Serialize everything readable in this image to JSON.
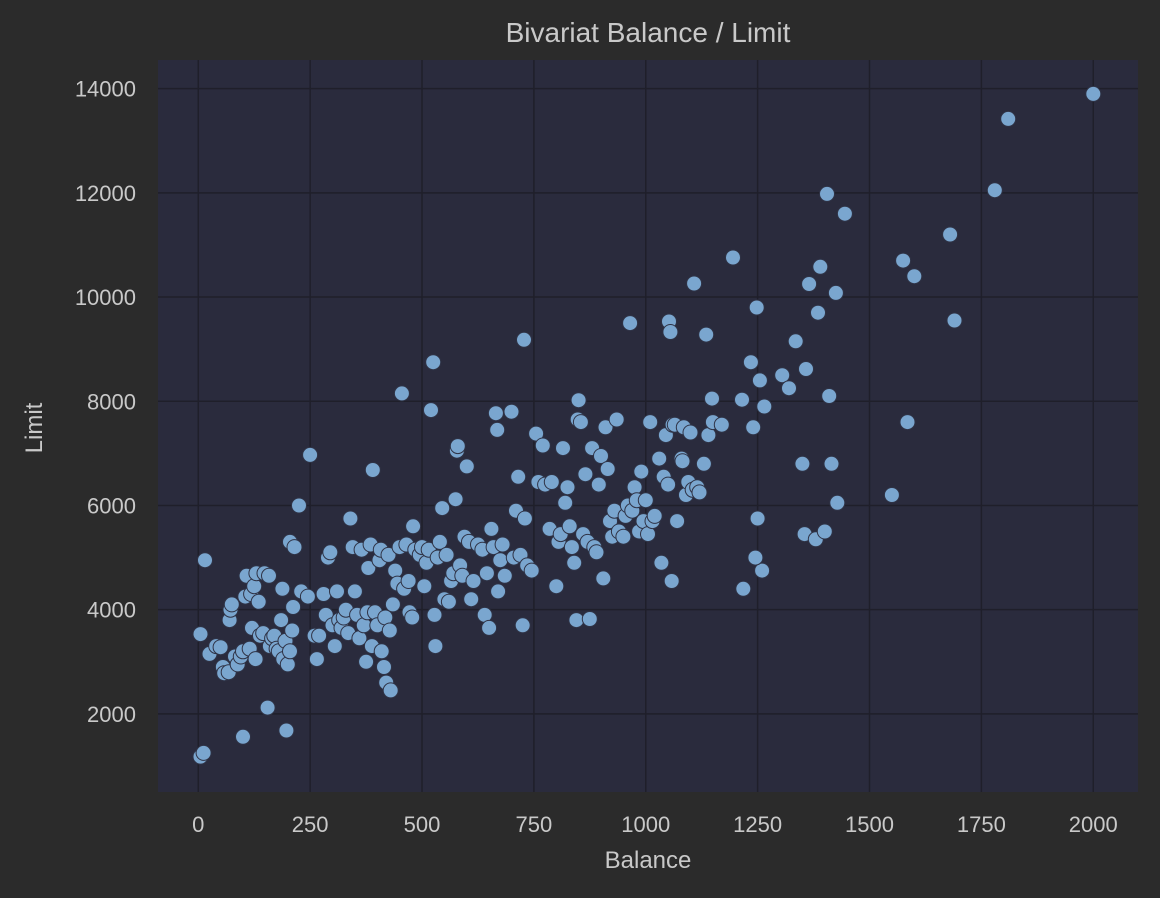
{
  "colors": {
    "background": "#2b2b2b",
    "plot_background": "#2a2b3d",
    "grid": "#1f1f2a",
    "text": "#c9c9c9",
    "point_fill": "#7aa6cf",
    "point_edge": "#2f3346"
  },
  "chart_data": {
    "type": "scatter",
    "title": "Bivariat Balance / Limit",
    "xlabel": "Balance",
    "ylabel": "Limit",
    "xlim": [
      -90,
      2100
    ],
    "ylim": [
      500,
      14550
    ],
    "xticks": [
      0,
      250,
      500,
      750,
      1000,
      1250,
      1500,
      1750,
      2000
    ],
    "yticks": [
      2000,
      4000,
      6000,
      8000,
      10000,
      12000,
      14000
    ],
    "grid": true,
    "legend": "none",
    "points": [
      [
        5,
        1180
      ],
      [
        12,
        1250
      ],
      [
        5,
        3530
      ],
      [
        15,
        4950
      ],
      [
        25,
        3150
      ],
      [
        40,
        3300
      ],
      [
        50,
        3280
      ],
      [
        55,
        2900
      ],
      [
        58,
        2780
      ],
      [
        68,
        2800
      ],
      [
        70,
        3800
      ],
      [
        72,
        4000
      ],
      [
        75,
        4100
      ],
      [
        82,
        3100
      ],
      [
        88,
        2950
      ],
      [
        95,
        3100
      ],
      [
        100,
        3200
      ],
      [
        100,
        1560
      ],
      [
        105,
        4250
      ],
      [
        108,
        4650
      ],
      [
        115,
        3250
      ],
      [
        118,
        4300
      ],
      [
        120,
        3650
      ],
      [
        125,
        4450
      ],
      [
        128,
        3050
      ],
      [
        130,
        4700
      ],
      [
        135,
        4150
      ],
      [
        138,
        3500
      ],
      [
        145,
        3550
      ],
      [
        148,
        4700
      ],
      [
        155,
        2120
      ],
      [
        158,
        4650
      ],
      [
        160,
        3300
      ],
      [
        165,
        3450
      ],
      [
        170,
        3500
      ],
      [
        175,
        3250
      ],
      [
        180,
        3200
      ],
      [
        185,
        3800
      ],
      [
        188,
        4400
      ],
      [
        190,
        3050
      ],
      [
        195,
        3400
      ],
      [
        197,
        1680
      ],
      [
        200,
        2950
      ],
      [
        205,
        3200
      ],
      [
        210,
        3600
      ],
      [
        212,
        4050
      ],
      [
        205,
        5300
      ],
      [
        215,
        5200
      ],
      [
        225,
        6000
      ],
      [
        230,
        4350
      ],
      [
        245,
        4250
      ],
      [
        250,
        6970
      ],
      [
        260,
        3500
      ],
      [
        265,
        3050
      ],
      [
        270,
        3500
      ],
      [
        280,
        4300
      ],
      [
        285,
        3900
      ],
      [
        290,
        5000
      ],
      [
        295,
        5100
      ],
      [
        300,
        3700
      ],
      [
        305,
        3300
      ],
      [
        310,
        4350
      ],
      [
        315,
        3800
      ],
      [
        320,
        3650
      ],
      [
        325,
        3850
      ],
      [
        330,
        4000
      ],
      [
        335,
        3550
      ],
      [
        340,
        5750
      ],
      [
        345,
        5200
      ],
      [
        350,
        4350
      ],
      [
        355,
        3900
      ],
      [
        360,
        3450
      ],
      [
        365,
        5150
      ],
      [
        370,
        3700
      ],
      [
        375,
        3000
      ],
      [
        378,
        3950
      ],
      [
        380,
        4800
      ],
      [
        385,
        5250
      ],
      [
        388,
        3300
      ],
      [
        390,
        6680
      ],
      [
        395,
        3950
      ],
      [
        400,
        3700
      ],
      [
        405,
        4950
      ],
      [
        408,
        5150
      ],
      [
        410,
        3200
      ],
      [
        415,
        2900
      ],
      [
        418,
        3850
      ],
      [
        420,
        2600
      ],
      [
        425,
        5050
      ],
      [
        428,
        3600
      ],
      [
        430,
        2450
      ],
      [
        435,
        4100
      ],
      [
        440,
        4750
      ],
      [
        445,
        4500
      ],
      [
        450,
        5200
      ],
      [
        455,
        8150
      ],
      [
        460,
        4400
      ],
      [
        465,
        5250
      ],
      [
        470,
        4550
      ],
      [
        472,
        3950
      ],
      [
        478,
        3850
      ],
      [
        480,
        5600
      ],
      [
        485,
        5150
      ],
      [
        495,
        5050
      ],
      [
        500,
        5200
      ],
      [
        505,
        4450
      ],
      [
        510,
        4900
      ],
      [
        515,
        5150
      ],
      [
        520,
        7830
      ],
      [
        525,
        8750
      ],
      [
        528,
        3900
      ],
      [
        530,
        3300
      ],
      [
        535,
        5000
      ],
      [
        540,
        5300
      ],
      [
        545,
        5950
      ],
      [
        550,
        4200
      ],
      [
        555,
        5050
      ],
      [
        560,
        4150
      ],
      [
        565,
        4550
      ],
      [
        570,
        4700
      ],
      [
        575,
        6120
      ],
      [
        578,
        7050
      ],
      [
        580,
        7140
      ],
      [
        585,
        4850
      ],
      [
        590,
        4650
      ],
      [
        595,
        5400
      ],
      [
        600,
        6750
      ],
      [
        605,
        5300
      ],
      [
        610,
        4200
      ],
      [
        615,
        4550
      ],
      [
        625,
        5250
      ],
      [
        635,
        5150
      ],
      [
        640,
        3900
      ],
      [
        645,
        4700
      ],
      [
        650,
        3650
      ],
      [
        655,
        5550
      ],
      [
        660,
        5200
      ],
      [
        665,
        7770
      ],
      [
        668,
        7450
      ],
      [
        670,
        4350
      ],
      [
        675,
        4950
      ],
      [
        680,
        5250
      ],
      [
        685,
        4650
      ],
      [
        700,
        7800
      ],
      [
        705,
        5000
      ],
      [
        710,
        5900
      ],
      [
        715,
        6550
      ],
      [
        720,
        5050
      ],
      [
        725,
        3700
      ],
      [
        728,
        9180
      ],
      [
        730,
        5750
      ],
      [
        735,
        4850
      ],
      [
        745,
        4750
      ],
      [
        755,
        7380
      ],
      [
        760,
        6450
      ],
      [
        770,
        7150
      ],
      [
        775,
        6400
      ],
      [
        785,
        5550
      ],
      [
        790,
        6450
      ],
      [
        800,
        4450
      ],
      [
        805,
        5300
      ],
      [
        810,
        5450
      ],
      [
        815,
        7100
      ],
      [
        820,
        6050
      ],
      [
        825,
        6350
      ],
      [
        830,
        5600
      ],
      [
        835,
        5200
      ],
      [
        840,
        4900
      ],
      [
        845,
        3800
      ],
      [
        848,
        7650
      ],
      [
        850,
        8020
      ],
      [
        855,
        7600
      ],
      [
        860,
        5450
      ],
      [
        865,
        6600
      ],
      [
        870,
        5300
      ],
      [
        875,
        3820
      ],
      [
        880,
        7100
      ],
      [
        885,
        5200
      ],
      [
        890,
        5100
      ],
      [
        895,
        6400
      ],
      [
        900,
        6950
      ],
      [
        905,
        4600
      ],
      [
        910,
        7500
      ],
      [
        915,
        6700
      ],
      [
        920,
        5700
      ],
      [
        925,
        5400
      ],
      [
        930,
        5900
      ],
      [
        935,
        7650
      ],
      [
        940,
        5500
      ],
      [
        950,
        5400
      ],
      [
        955,
        5800
      ],
      [
        960,
        6000
      ],
      [
        965,
        9500
      ],
      [
        970,
        5900
      ],
      [
        975,
        6350
      ],
      [
        980,
        6100
      ],
      [
        985,
        5500
      ],
      [
        990,
        6650
      ],
      [
        995,
        5700
      ],
      [
        1000,
        6100
      ],
      [
        1005,
        5450
      ],
      [
        1010,
        7600
      ],
      [
        1015,
        5700
      ],
      [
        1020,
        5800
      ],
      [
        1030,
        6900
      ],
      [
        1035,
        4900
      ],
      [
        1040,
        6550
      ],
      [
        1045,
        7350
      ],
      [
        1050,
        6400
      ],
      [
        1052,
        9530
      ],
      [
        1055,
        9330
      ],
      [
        1058,
        4550
      ],
      [
        1060,
        7550
      ],
      [
        1065,
        7550
      ],
      [
        1070,
        5700
      ],
      [
        1080,
        6900
      ],
      [
        1082,
        6850
      ],
      [
        1085,
        7500
      ],
      [
        1090,
        6200
      ],
      [
        1095,
        6450
      ],
      [
        1100,
        7400
      ],
      [
        1105,
        6300
      ],
      [
        1108,
        10260
      ],
      [
        1115,
        6350
      ],
      [
        1120,
        6250
      ],
      [
        1130,
        6800
      ],
      [
        1135,
        9280
      ],
      [
        1140,
        7350
      ],
      [
        1148,
        8050
      ],
      [
        1150,
        7600
      ],
      [
        1170,
        7550
      ],
      [
        1195,
        10760
      ],
      [
        1215,
        8030
      ],
      [
        1218,
        4400
      ],
      [
        1235,
        8750
      ],
      [
        1240,
        7500
      ],
      [
        1248,
        9800
      ],
      [
        1250,
        5750
      ],
      [
        1255,
        8400
      ],
      [
        1260,
        4750
      ],
      [
        1265,
        7900
      ],
      [
        1245,
        5000
      ],
      [
        1305,
        8500
      ],
      [
        1320,
        8250
      ],
      [
        1335,
        9150
      ],
      [
        1350,
        6800
      ],
      [
        1355,
        5450
      ],
      [
        1358,
        8620
      ],
      [
        1365,
        10250
      ],
      [
        1380,
        5350
      ],
      [
        1385,
        9700
      ],
      [
        1390,
        10580
      ],
      [
        1400,
        5500
      ],
      [
        1405,
        11980
      ],
      [
        1410,
        8100
      ],
      [
        1415,
        6800
      ],
      [
        1425,
        10080
      ],
      [
        1428,
        6050
      ],
      [
        1445,
        11600
      ],
      [
        1550,
        6200
      ],
      [
        1575,
        10700
      ],
      [
        1585,
        7600
      ],
      [
        1600,
        10400
      ],
      [
        1680,
        11200
      ],
      [
        1690,
        9550
      ],
      [
        1780,
        12050
      ],
      [
        1810,
        13420
      ],
      [
        2000,
        13900
      ]
    ]
  }
}
